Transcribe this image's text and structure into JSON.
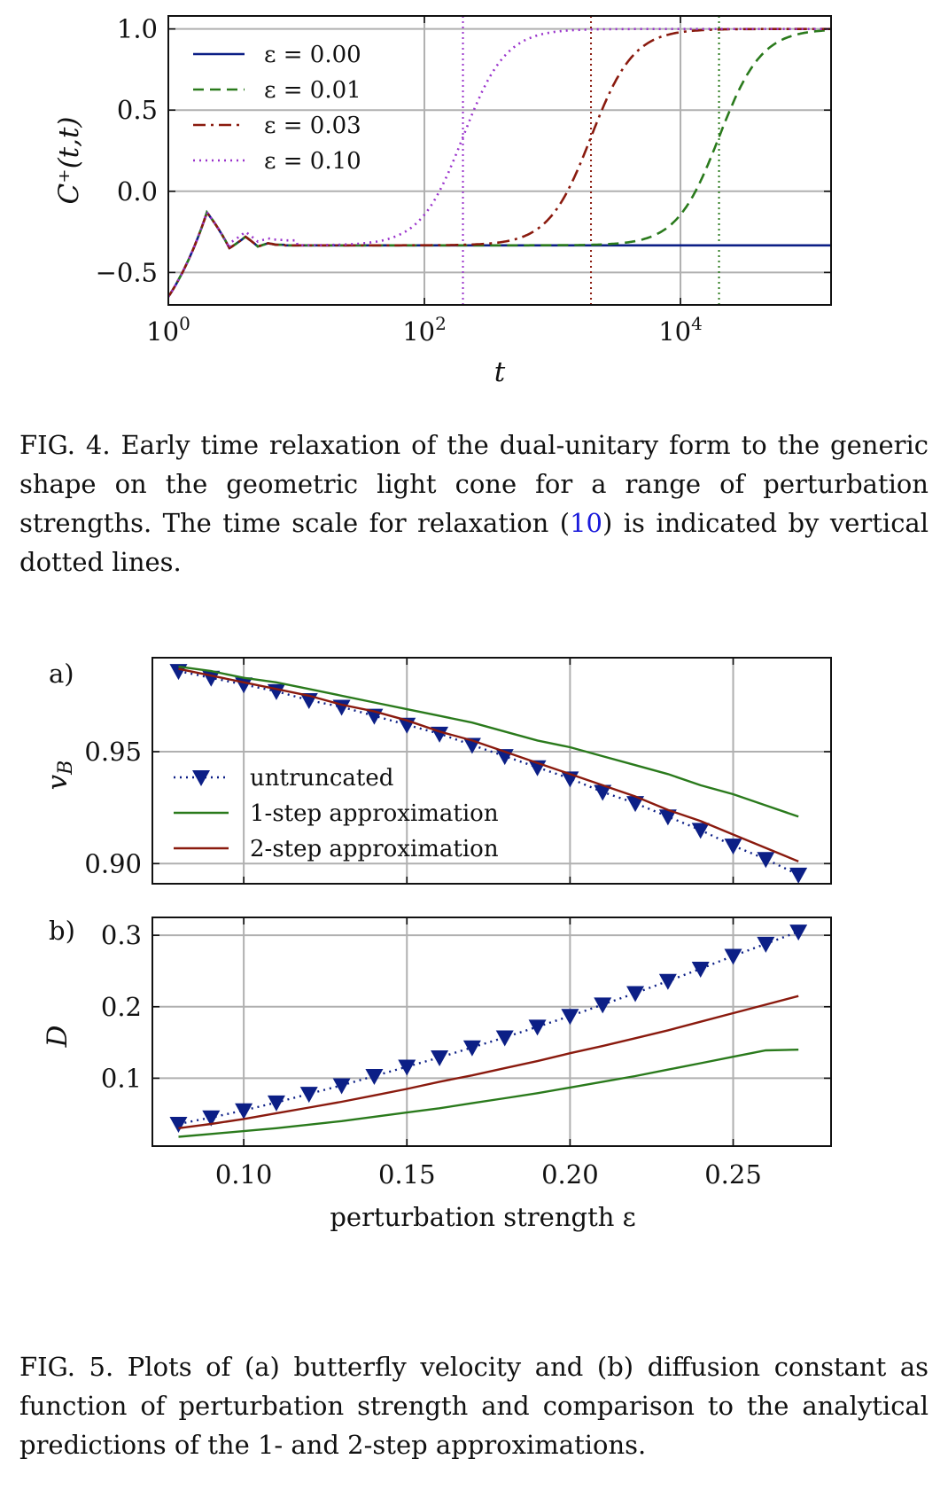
{
  "fig4": {
    "caption_label": "FIG. 4.",
    "caption_pre": "Early time relaxation of the dual-unitary form to the generic shape on the geometric light cone for a range of perturbation strengths. The time scale for relaxation (",
    "caption_ref": "10",
    "caption_post": ") is indicated by vertical dotted lines."
  },
  "fig5": {
    "caption_label": "FIG. 5.",
    "caption_text": "Plots of (a) butterfly velocity and (b) diffusion constant as function of perturbation strength and comparison to the analytical predictions of the 1- and 2-step approximations.",
    "panel_a_label": "a)",
    "panel_b_label": "b)"
  },
  "chart_data": [
    {
      "id": "fig4-chart",
      "type": "line",
      "xlabel": "t",
      "ylabel": "C⁺(t,t)",
      "xscale": "log",
      "xlim": [
        1,
        150000
      ],
      "ylim": [
        -0.7,
        1.08
      ],
      "xticks": [
        {
          "v": 1,
          "base": "10",
          "exp": "0"
        },
        {
          "v": 100,
          "base": "10",
          "exp": "2"
        },
        {
          "v": 10000,
          "base": "10",
          "exp": "4"
        }
      ],
      "yticks": [
        {
          "v": -0.5,
          "label": "−0.5"
        },
        {
          "v": 0.0,
          "label": "0.0"
        },
        {
          "v": 0.5,
          "label": "0.5"
        },
        {
          "v": 1.0,
          "label": "1.0"
        }
      ],
      "grid": true,
      "legend_position": "top-left",
      "series": [
        {
          "name": "ε = 0.00",
          "color": "#0c1f86",
          "dash": "solid",
          "t_half": null
        },
        {
          "name": "ε = 0.01",
          "color": "#2a7a1c",
          "dash": "dashed",
          "t_half": 20000
        },
        {
          "name": "ε = 0.03",
          "color": "#8a1a0e",
          "dash": "dashdot",
          "t_half": 2000
        },
        {
          "name": "ε = 0.10",
          "color": "#9a33cc",
          "dash": "dotted",
          "t_half": 200
        }
      ],
      "early_time": {
        "t": [
          1,
          2,
          3,
          4,
          5,
          6,
          7,
          8
        ],
        "y": [
          -0.65,
          -0.13,
          -0.35,
          -0.28,
          -0.34,
          -0.32,
          -0.33,
          -0.33
        ]
      },
      "plateau": -0.333,
      "vlines": [
        {
          "x": 200,
          "color": "#9a33cc"
        },
        {
          "x": 2000,
          "color": "#8a1a0e"
        },
        {
          "x": 20000,
          "color": "#2a7a1c"
        }
      ]
    },
    {
      "id": "fig5a-chart",
      "type": "line",
      "xlabel": "",
      "ylabel": "v_B",
      "xlim": [
        0.072,
        0.28
      ],
      "ylim": [
        0.891,
        0.992
      ],
      "xticks": [
        0.1,
        0.15,
        0.2,
        0.25
      ],
      "yticks": [
        {
          "v": 0.9,
          "label": "0.90"
        },
        {
          "v": 0.95,
          "label": "0.95"
        }
      ],
      "grid": true,
      "legend_position": "lower-left",
      "x": [
        0.08,
        0.09,
        0.1,
        0.11,
        0.12,
        0.13,
        0.14,
        0.15,
        0.16,
        0.17,
        0.18,
        0.19,
        0.2,
        0.21,
        0.22,
        0.23,
        0.24,
        0.25,
        0.26,
        0.27
      ],
      "series": [
        {
          "name": "untruncated",
          "color": "#0c1f86",
          "style": "markers-dotted",
          "values": [
            0.986,
            0.983,
            0.98,
            0.977,
            0.973,
            0.97,
            0.966,
            0.962,
            0.958,
            0.953,
            0.948,
            0.943,
            0.938,
            0.932,
            0.927,
            0.921,
            0.915,
            0.908,
            0.902,
            0.895
          ]
        },
        {
          "name": "1-step approximation",
          "color": "#2a7a1c",
          "style": "solid",
          "values": [
            0.988,
            0.986,
            0.983,
            0.981,
            0.978,
            0.975,
            0.972,
            0.969,
            0.966,
            0.963,
            0.959,
            0.955,
            0.952,
            0.948,
            0.944,
            0.94,
            0.935,
            0.931,
            0.926,
            0.921
          ]
        },
        {
          "name": "2-step approximation",
          "color": "#8a1a0e",
          "style": "solid",
          "values": [
            0.987,
            0.984,
            0.981,
            0.978,
            0.975,
            0.971,
            0.968,
            0.964,
            0.959,
            0.955,
            0.95,
            0.945,
            0.94,
            0.935,
            0.93,
            0.924,
            0.919,
            0.913,
            0.907,
            0.901
          ]
        }
      ]
    },
    {
      "id": "fig5b-chart",
      "type": "line",
      "xlabel": "perturbation strength ε",
      "ylabel": "D",
      "xlim": [
        0.072,
        0.28
      ],
      "ylim": [
        0.005,
        0.325
      ],
      "xticks": [
        {
          "v": 0.1,
          "label": "0.10"
        },
        {
          "v": 0.15,
          "label": "0.15"
        },
        {
          "v": 0.2,
          "label": "0.20"
        },
        {
          "v": 0.25,
          "label": "0.25"
        }
      ],
      "yticks": [
        {
          "v": 0.1,
          "label": "0.1"
        },
        {
          "v": 0.2,
          "label": "0.2"
        },
        {
          "v": 0.3,
          "label": "0.3"
        }
      ],
      "grid": true,
      "x": [
        0.08,
        0.09,
        0.1,
        0.11,
        0.12,
        0.13,
        0.14,
        0.15,
        0.16,
        0.17,
        0.18,
        0.19,
        0.2,
        0.21,
        0.22,
        0.23,
        0.24,
        0.25,
        0.26,
        0.27
      ],
      "series": [
        {
          "name": "untruncated",
          "color": "#0c1f86",
          "style": "markers-dotted",
          "values": [
            0.036,
            0.045,
            0.055,
            0.066,
            0.078,
            0.09,
            0.103,
            0.116,
            0.129,
            0.143,
            0.157,
            0.172,
            0.187,
            0.203,
            0.219,
            0.236,
            0.253,
            0.271,
            0.288,
            0.305
          ]
        },
        {
          "name": "1-step approximation",
          "color": "#2a7a1c",
          "style": "solid",
          "values": [
            0.018,
            0.022,
            0.026,
            0.03,
            0.035,
            0.04,
            0.046,
            0.052,
            0.058,
            0.065,
            0.072,
            0.079,
            0.087,
            0.095,
            0.103,
            0.112,
            0.121,
            0.13,
            0.139,
            0.14
          ]
        },
        {
          "name": "2-step approximation",
          "color": "#8a1a0e",
          "style": "solid",
          "values": [
            0.03,
            0.036,
            0.043,
            0.051,
            0.059,
            0.067,
            0.076,
            0.085,
            0.095,
            0.104,
            0.114,
            0.124,
            0.135,
            0.145,
            0.156,
            0.167,
            0.179,
            0.191,
            0.203,
            0.215
          ]
        }
      ]
    }
  ]
}
